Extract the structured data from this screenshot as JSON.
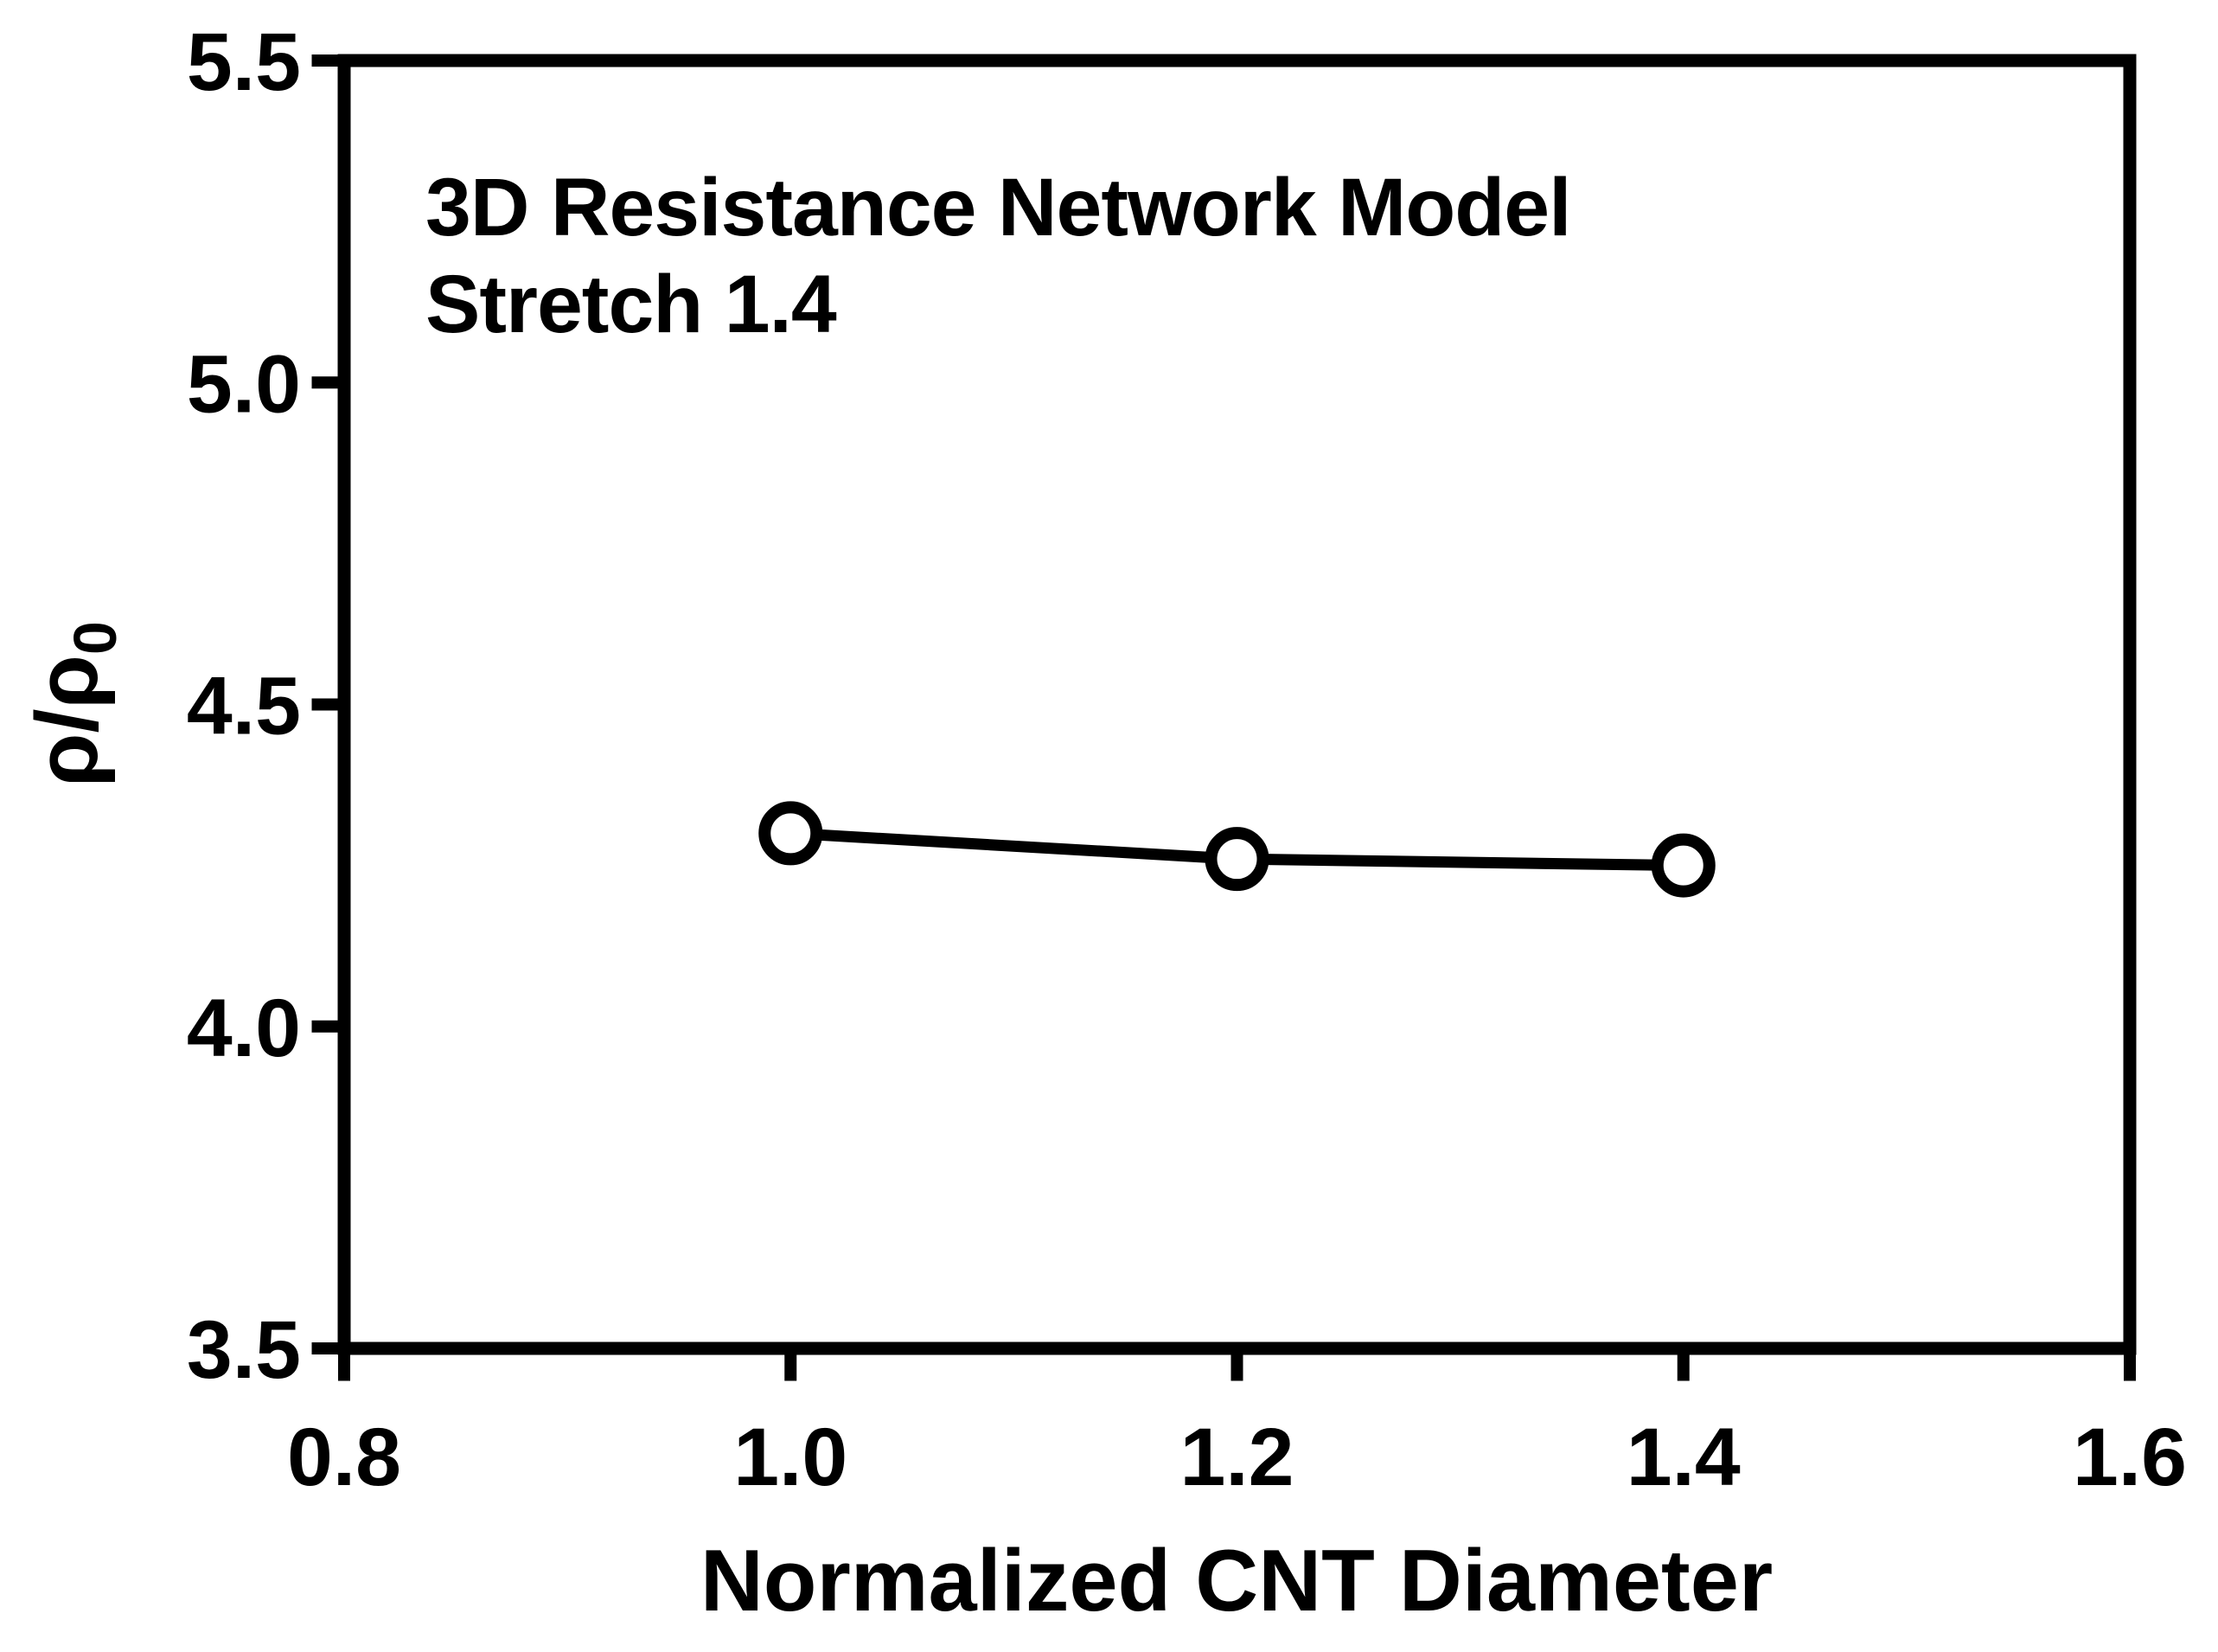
{
  "figure": {
    "background": "#ffffff",
    "ink": "#000000"
  },
  "chart_data": {
    "type": "line",
    "x": [
      1.0,
      1.2,
      1.4
    ],
    "y": [
      4.3,
      4.26,
      4.25
    ],
    "annotation": {
      "line1": "3D Resistance Network Model",
      "line2": "Stretch 1.4"
    },
    "xlabel": "Normalized CNT Diameter",
    "ylabel_main": "ρ/ρ",
    "ylabel_sub": "0",
    "xlim": [
      0.8,
      1.6
    ],
    "ylim": [
      3.5,
      5.5
    ],
    "x_ticks": [
      0.8,
      1.0,
      1.2,
      1.4,
      1.6
    ],
    "y_ticks": [
      3.5,
      4.0,
      4.5,
      5.0,
      5.5
    ],
    "tick_decimals": 1,
    "grid": false,
    "legend": false,
    "marker": "open-circle",
    "line_color": "#000000",
    "marker_fill": "#ffffff",
    "frame": "full-box",
    "tick_direction": "out"
  }
}
